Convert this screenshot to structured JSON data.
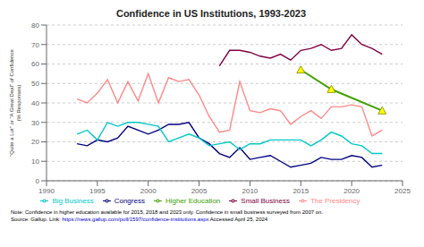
{
  "chart_data": {
    "type": "line",
    "title": "Confidence in US Institutions, 1993-2023",
    "ylabel": "\"Quite a Lot\" or \"A Great Deal\" of Confidence\n(% Responses)",
    "xlim": [
      1990,
      2025
    ],
    "ylim": [
      0,
      80
    ],
    "xticks": [
      1990,
      1995,
      2000,
      2005,
      2010,
      2015,
      2020,
      2025
    ],
    "yticks": [
      0,
      10,
      20,
      30,
      40,
      50,
      60,
      70,
      80
    ],
    "grid": true,
    "legend": "bottom",
    "series": [
      {
        "name": "Congress",
        "color": "#000080",
        "x": [
          1993,
          1994,
          1995,
          1996,
          1997,
          1998,
          1999,
          2000,
          2001,
          2002,
          2003,
          2004,
          2005,
          2006,
          2007,
          2008,
          2009,
          2010,
          2011,
          2012,
          2013,
          2014,
          2015,
          2016,
          2017,
          2018,
          2019,
          2020,
          2021,
          2022,
          2023
        ],
        "values": [
          19,
          18,
          21,
          20,
          22,
          28,
          26,
          24,
          26,
          29,
          29,
          30,
          22,
          19,
          14,
          12,
          17,
          11,
          12,
          13,
          10,
          7,
          8,
          9,
          12,
          11,
          11,
          13,
          12,
          7,
          8
        ]
      },
      {
        "name": "The Presidency",
        "color": "#ff8888",
        "x": [
          1993,
          1994,
          1995,
          1996,
          1997,
          1998,
          1999,
          2000,
          2001,
          2002,
          2003,
          2004,
          2005,
          2006,
          2007,
          2008,
          2009,
          2010,
          2011,
          2012,
          2013,
          2014,
          2015,
          2016,
          2017,
          2018,
          2019,
          2020,
          2021,
          2022,
          2023
        ],
        "values": [
          42,
          40,
          45,
          52,
          40,
          51,
          41,
          55,
          40,
          53,
          51,
          52,
          44,
          33,
          25,
          26,
          51,
          36,
          35,
          37,
          36,
          29,
          33,
          36,
          32,
          38,
          38,
          39,
          38,
          23,
          26
        ]
      },
      {
        "name": "Higher Education",
        "color": "#40a000",
        "marker": "triangle",
        "x": [
          2015,
          2018,
          2023
        ],
        "values": [
          57,
          47,
          36
        ]
      },
      {
        "name": "Big Business",
        "color": "#00c8c8",
        "x": [
          1993,
          1994,
          1995,
          1996,
          1997,
          1998,
          1999,
          2000,
          2001,
          2002,
          2003,
          2004,
          2005,
          2006,
          2007,
          2008,
          2009,
          2010,
          2011,
          2012,
          2013,
          2014,
          2015,
          2016,
          2017,
          2018,
          2019,
          2020,
          2021,
          2022,
          2023
        ],
        "values": [
          24,
          26,
          21,
          30,
          28,
          30,
          30,
          29,
          28,
          20,
          22,
          24,
          22,
          18,
          19,
          20,
          16,
          19,
          19,
          21,
          21,
          21,
          21,
          18,
          21,
          25,
          23,
          19,
          18,
          14,
          14
        ]
      },
      {
        "name": "Small Business",
        "color": "#800040",
        "x": [
          2007,
          2008,
          2009,
          2010,
          2011,
          2012,
          2013,
          2014,
          2015,
          2016,
          2017,
          2018,
          2019,
          2020,
          2021,
          2022,
          2023
        ],
        "values": [
          59,
          67,
          67,
          66,
          64,
          63,
          65,
          62,
          67,
          68,
          70,
          67,
          68,
          75,
          70,
          68,
          65
        ]
      }
    ],
    "annotations": [
      [
        {
          "text": "Note: Confidence in higher education available for 2015, 2018 and 2023 only. Confidence in small business surveyed from 2007 on."
        }
      ],
      [
        {
          "text": "Source: Gallup. Link: "
        },
        {
          "text": "https://news.gallup.com/poll/1597/confidence-institutions.aspx",
          "color": "#0000cc"
        },
        {
          "text": " Accessed April 25, 2024"
        }
      ]
    ]
  }
}
